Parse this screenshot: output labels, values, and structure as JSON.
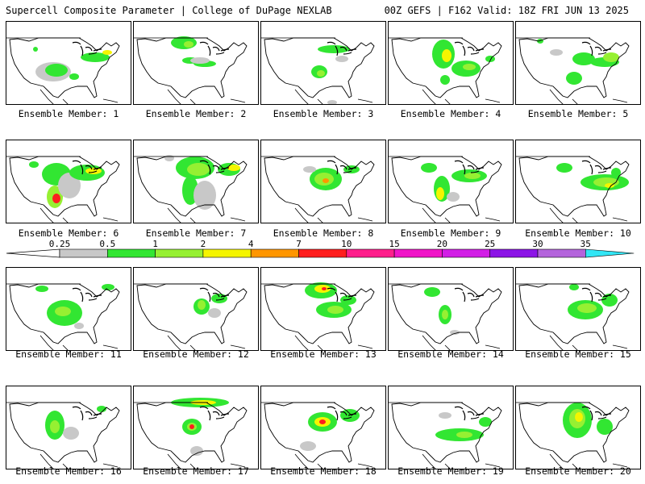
{
  "header": {
    "left": "Supercell Composite Parameter | College of DuPage NEXLAB",
    "right": "00Z GEFS | F162 Valid: 18Z FRI JUN 13 2025"
  },
  "members": [
    {
      "label": "Ensemble Member: 1"
    },
    {
      "label": "Ensemble Member: 2"
    },
    {
      "label": "Ensemble Member: 3"
    },
    {
      "label": "Ensemble Member: 4"
    },
    {
      "label": "Ensemble Member: 5"
    },
    {
      "label": "Ensemble Member: 6"
    },
    {
      "label": "Ensemble Member: 7"
    },
    {
      "label": "Ensemble Member: 8"
    },
    {
      "label": "Ensemble Member: 9"
    },
    {
      "label": "Ensemble Member: 10"
    },
    {
      "label": "Ensemble Member: 11"
    },
    {
      "label": "Ensemble Member: 12"
    },
    {
      "label": "Ensemble Member: 13"
    },
    {
      "label": "Ensemble Member: 14"
    },
    {
      "label": "Ensemble Member: 15"
    },
    {
      "label": "Ensemble Member: 16"
    },
    {
      "label": "Ensemble Member: 17"
    },
    {
      "label": "Ensemble Member: 18"
    },
    {
      "label": "Ensemble Member: 19"
    },
    {
      "label": "Ensemble Member: 20"
    }
  ],
  "legend": {
    "labels": [
      "0.25",
      "0.5",
      "1",
      "2",
      "4",
      "7",
      "10",
      "15",
      "20",
      "25",
      "30",
      "35"
    ],
    "colors": [
      "#c8c8c8",
      "#32e632",
      "#96f032",
      "#f5f500",
      "#ff9600",
      "#ff1e1e",
      "#ff1e8c",
      "#f014c8",
      "#d21ee6",
      "#8c14e6",
      "#b464dc",
      "#32e6f5"
    ]
  },
  "map_colors": {
    "gray": "#c8c8c8",
    "green": "#32e632",
    "lime": "#96f032",
    "yellow": "#f5f500",
    "orange": "#ff9600",
    "red": "#ff1e1e"
  }
}
